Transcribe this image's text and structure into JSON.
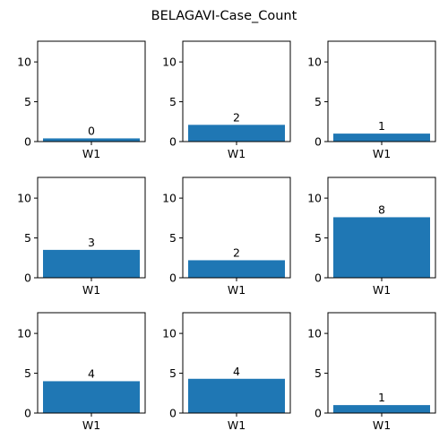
{
  "chart_data": {
    "type": "bar",
    "title": "BELAGAVI-Case_Count",
    "layout": "3x3 grid of subplots",
    "shared_settings": {
      "ylim": [
        0,
        12.6
      ],
      "yticks": [
        0,
        5,
        10
      ],
      "grid": false,
      "legend": "none",
      "bar_color": "#1f77b4"
    },
    "panels": [
      {
        "categories": [
          "W1"
        ],
        "values": [
          0.4
        ],
        "labels": [
          "0"
        ]
      },
      {
        "categories": [
          "W1"
        ],
        "values": [
          2.1
        ],
        "labels": [
          "2"
        ]
      },
      {
        "categories": [
          "W1"
        ],
        "values": [
          1.0
        ],
        "labels": [
          "1"
        ]
      },
      {
        "categories": [
          "W1"
        ],
        "values": [
          3.5
        ],
        "labels": [
          "3"
        ]
      },
      {
        "categories": [
          "W1"
        ],
        "values": [
          2.2
        ],
        "labels": [
          "2"
        ]
      },
      {
        "categories": [
          "W1"
        ],
        "values": [
          7.6
        ],
        "labels": [
          "8"
        ]
      },
      {
        "categories": [
          "W1"
        ],
        "values": [
          4.0
        ],
        "labels": [
          "4"
        ]
      },
      {
        "categories": [
          "W1"
        ],
        "values": [
          4.3
        ],
        "labels": [
          "4"
        ]
      },
      {
        "categories": [
          "W1"
        ],
        "values": [
          1.0
        ],
        "labels": [
          "1"
        ]
      }
    ]
  }
}
